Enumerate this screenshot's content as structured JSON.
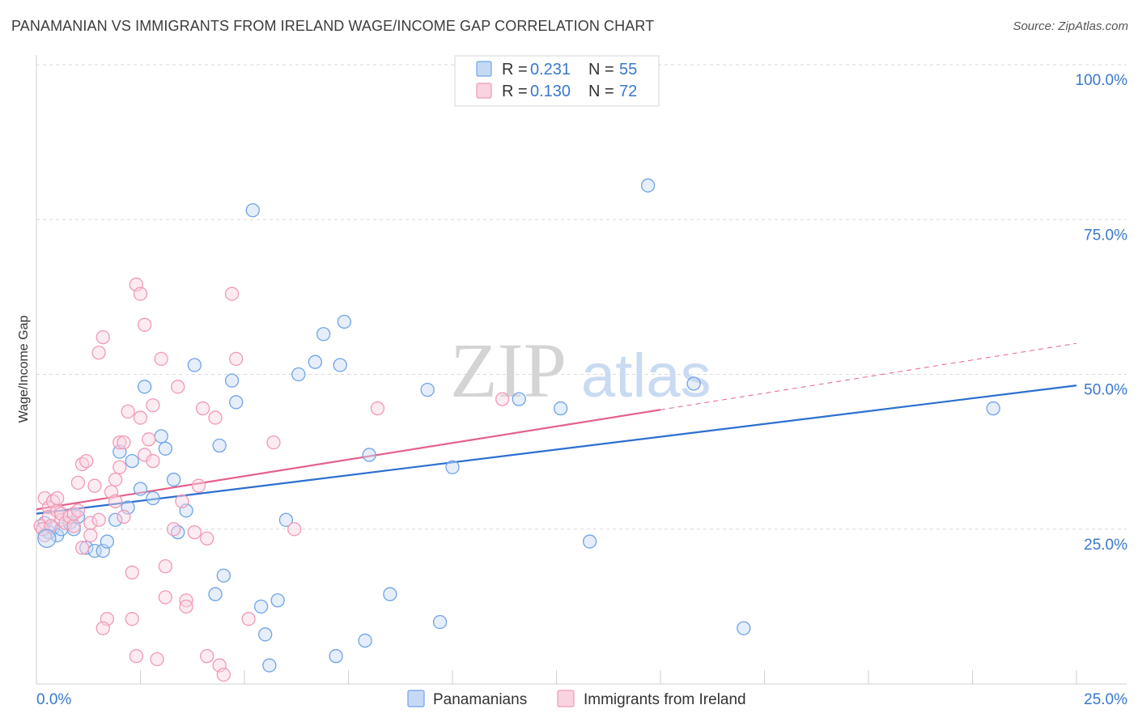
{
  "header": {
    "title": "PANAMANIAN VS IMMIGRANTS FROM IRELAND WAGE/INCOME GAP CORRELATION CHART",
    "source": "Source: ZipAtlas.com"
  },
  "watermark": {
    "zip": "ZIP",
    "atlas": "atlas"
  },
  "colors": {
    "blue": "#6fa3e8",
    "blue_fill": "#c5d9f5",
    "blue_line": "#2b6fcf",
    "pink": "#f09ab5",
    "pink_fill": "#f9d3df",
    "pink_line": "#e3628d",
    "axis_text_blue": "#3a78cc",
    "grid": "#d9d9d9"
  },
  "legend_top": {
    "rows": [
      {
        "r_label": "R = ",
        "r_value": "0.231",
        "n_label": "N = ",
        "n_value": "55"
      },
      {
        "r_label": "R = ",
        "r_value": "0.130",
        "n_label": "N = ",
        "n_value": "72"
      }
    ]
  },
  "chart_data": {
    "type": "scatter",
    "title": "PANAMANIAN VS IMMIGRANTS FROM IRELAND WAGE/INCOME GAP CORRELATION CHART",
    "xlabel": "",
    "ylabel": "Wage/Income Gap",
    "xlim": [
      0,
      25
    ],
    "ylim": [
      0,
      100
    ],
    "x_tick_labels": [
      "0.0%",
      "25.0%"
    ],
    "y_tick_labels": [
      "25.0%",
      "50.0%",
      "75.0%",
      "100.0%"
    ],
    "y_ticks": [
      25,
      50,
      75,
      100
    ],
    "legend": [
      "Panamanians",
      "Immigrants from Ireland"
    ],
    "series": [
      {
        "name": "Panamanians",
        "color_key": "blue",
        "trend": {
          "x0": 0,
          "y0": 27.5,
          "x1": 25,
          "y1": 48.2,
          "dashed_from": null
        },
        "points": [
          {
            "x": 0.2,
            "y": 26.0
          },
          {
            "x": 0.3,
            "y": 24.5
          },
          {
            "x": 0.4,
            "y": 25.2
          },
          {
            "x": 0.5,
            "y": 24.0
          },
          {
            "x": 0.6,
            "y": 25.0
          },
          {
            "x": 0.8,
            "y": 26.0
          },
          {
            "x": 0.9,
            "y": 25.0
          },
          {
            "x": 1.0,
            "y": 27.0
          },
          {
            "x": 1.2,
            "y": 22.0
          },
          {
            "x": 1.4,
            "y": 21.5
          },
          {
            "x": 1.6,
            "y": 21.5
          },
          {
            "x": 1.7,
            "y": 23.0
          },
          {
            "x": 1.9,
            "y": 26.5
          },
          {
            "x": 2.0,
            "y": 37.5
          },
          {
            "x": 2.2,
            "y": 28.5
          },
          {
            "x": 2.3,
            "y": 36.0
          },
          {
            "x": 2.5,
            "y": 31.5
          },
          {
            "x": 2.6,
            "y": 48.0
          },
          {
            "x": 2.8,
            "y": 30.0
          },
          {
            "x": 3.0,
            "y": 40.0
          },
          {
            "x": 3.1,
            "y": 38.0
          },
          {
            "x": 3.3,
            "y": 33.0
          },
          {
            "x": 3.4,
            "y": 24.5
          },
          {
            "x": 3.6,
            "y": 28.0
          },
          {
            "x": 3.8,
            "y": 51.5
          },
          {
            "x": 4.3,
            "y": 14.5
          },
          {
            "x": 4.4,
            "y": 38.5
          },
          {
            "x": 4.5,
            "y": 17.5
          },
          {
            "x": 4.7,
            "y": 49.0
          },
          {
            "x": 4.8,
            "y": 45.5
          },
          {
            "x": 5.2,
            "y": 76.5
          },
          {
            "x": 5.4,
            "y": 12.5
          },
          {
            "x": 5.5,
            "y": 8.0
          },
          {
            "x": 5.6,
            "y": 3.0
          },
          {
            "x": 5.8,
            "y": 13.5
          },
          {
            "x": 6.0,
            "y": 26.5
          },
          {
            "x": 6.3,
            "y": 50.0
          },
          {
            "x": 6.7,
            "y": 52.0
          },
          {
            "x": 6.9,
            "y": 56.5
          },
          {
            "x": 7.2,
            "y": 4.5
          },
          {
            "x": 7.3,
            "y": 51.5
          },
          {
            "x": 7.4,
            "y": 58.5
          },
          {
            "x": 7.9,
            "y": 7.0
          },
          {
            "x": 8.0,
            "y": 37.0
          },
          {
            "x": 8.5,
            "y": 14.5
          },
          {
            "x": 9.4,
            "y": 47.5
          },
          {
            "x": 9.7,
            "y": 10.0
          },
          {
            "x": 10.0,
            "y": 35.0
          },
          {
            "x": 11.6,
            "y": 46.0
          },
          {
            "x": 12.6,
            "y": 44.5
          },
          {
            "x": 13.3,
            "y": 23.0
          },
          {
            "x": 14.7,
            "y": 80.5
          },
          {
            "x": 15.8,
            "y": 48.5
          },
          {
            "x": 17.0,
            "y": 9.0
          },
          {
            "x": 23.0,
            "y": 44.5
          }
        ]
      },
      {
        "name": "Immigrants from Ireland",
        "color_key": "pink",
        "trend": {
          "x0": 0,
          "y0": 28.2,
          "x1": 25,
          "y1": 55.0,
          "dashed_from": 15.0
        },
        "points": [
          {
            "x": 0.1,
            "y": 25.5
          },
          {
            "x": 0.2,
            "y": 24.0
          },
          {
            "x": 0.2,
            "y": 30.0
          },
          {
            "x": 0.3,
            "y": 28.5
          },
          {
            "x": 0.3,
            "y": 27.0
          },
          {
            "x": 0.4,
            "y": 29.5
          },
          {
            "x": 0.5,
            "y": 28.0
          },
          {
            "x": 0.5,
            "y": 30.0
          },
          {
            "x": 0.6,
            "y": 26.5
          },
          {
            "x": 0.6,
            "y": 27.5
          },
          {
            "x": 0.7,
            "y": 26.0
          },
          {
            "x": 0.8,
            "y": 27.0
          },
          {
            "x": 0.9,
            "y": 25.5
          },
          {
            "x": 0.9,
            "y": 27.5
          },
          {
            "x": 1.0,
            "y": 28.0
          },
          {
            "x": 1.0,
            "y": 32.5
          },
          {
            "x": 1.1,
            "y": 35.5
          },
          {
            "x": 1.2,
            "y": 36.0
          },
          {
            "x": 1.1,
            "y": 22.0
          },
          {
            "x": 1.3,
            "y": 26.0
          },
          {
            "x": 1.3,
            "y": 24.0
          },
          {
            "x": 1.4,
            "y": 32.0
          },
          {
            "x": 1.5,
            "y": 26.5
          },
          {
            "x": 1.5,
            "y": 53.5
          },
          {
            "x": 1.6,
            "y": 56.0
          },
          {
            "x": 1.7,
            "y": 10.5
          },
          {
            "x": 1.6,
            "y": 9.0
          },
          {
            "x": 1.8,
            "y": 31.0
          },
          {
            "x": 1.9,
            "y": 29.5
          },
          {
            "x": 1.9,
            "y": 33.0
          },
          {
            "x": 2.0,
            "y": 35.0
          },
          {
            "x": 2.0,
            "y": 39.0
          },
          {
            "x": 2.1,
            "y": 39.0
          },
          {
            "x": 2.1,
            "y": 27.0
          },
          {
            "x": 2.2,
            "y": 44.0
          },
          {
            "x": 2.3,
            "y": 18.0
          },
          {
            "x": 2.3,
            "y": 10.5
          },
          {
            "x": 2.4,
            "y": 64.5
          },
          {
            "x": 2.4,
            "y": 4.5
          },
          {
            "x": 2.5,
            "y": 63.0
          },
          {
            "x": 2.5,
            "y": 43.0
          },
          {
            "x": 2.6,
            "y": 58.0
          },
          {
            "x": 2.6,
            "y": 37.0
          },
          {
            "x": 2.7,
            "y": 39.5
          },
          {
            "x": 2.8,
            "y": 36.0
          },
          {
            "x": 2.8,
            "y": 45.0
          },
          {
            "x": 2.9,
            "y": 4.0
          },
          {
            "x": 3.0,
            "y": 52.5
          },
          {
            "x": 3.1,
            "y": 19.0
          },
          {
            "x": 3.1,
            "y": 14.0
          },
          {
            "x": 3.3,
            "y": 25.0
          },
          {
            "x": 3.4,
            "y": 48.0
          },
          {
            "x": 3.5,
            "y": 29.5
          },
          {
            "x": 3.6,
            "y": 13.5
          },
          {
            "x": 3.6,
            "y": 12.5
          },
          {
            "x": 3.8,
            "y": 24.5
          },
          {
            "x": 3.9,
            "y": 32.0
          },
          {
            "x": 4.0,
            "y": 44.5
          },
          {
            "x": 4.1,
            "y": 4.5
          },
          {
            "x": 4.1,
            "y": 23.5
          },
          {
            "x": 4.3,
            "y": 43.0
          },
          {
            "x": 4.4,
            "y": 3.0
          },
          {
            "x": 4.5,
            "y": 1.5
          },
          {
            "x": 4.7,
            "y": 63.0
          },
          {
            "x": 4.8,
            "y": 52.5
          },
          {
            "x": 5.1,
            "y": 10.5
          },
          {
            "x": 5.7,
            "y": 39.0
          },
          {
            "x": 6.2,
            "y": 25.0
          },
          {
            "x": 8.2,
            "y": 44.5
          },
          {
            "x": 11.2,
            "y": 46.0
          },
          {
            "x": 0.15,
            "y": 25.0
          },
          {
            "x": 0.35,
            "y": 25.5
          }
        ]
      }
    ]
  }
}
